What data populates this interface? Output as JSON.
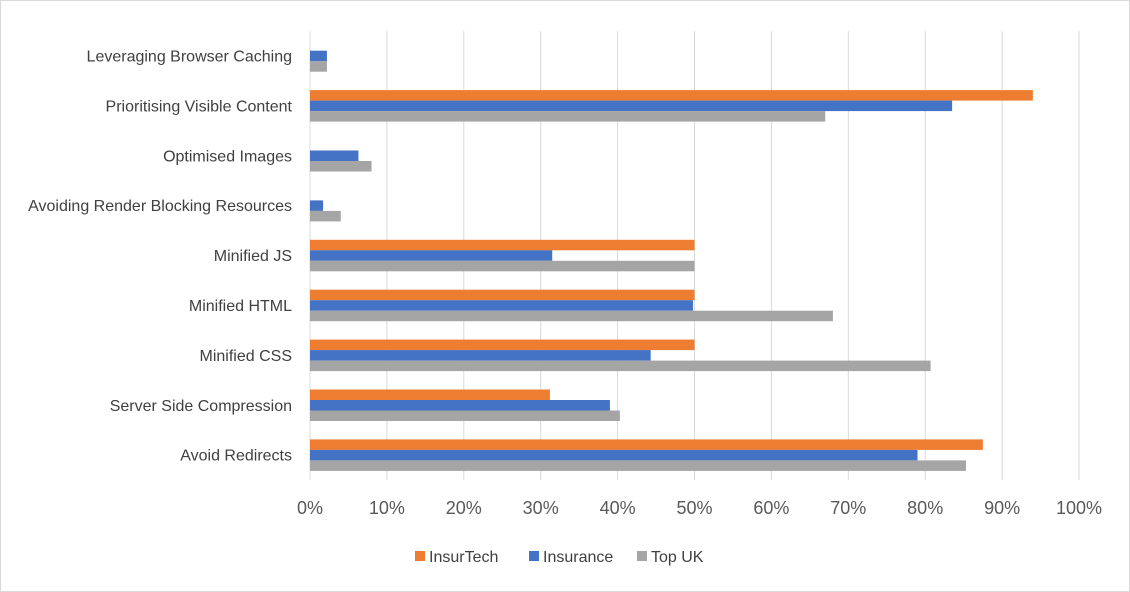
{
  "chart_data": {
    "type": "bar",
    "orientation": "horizontal",
    "categories": [
      "Leveraging Browser Caching",
      "Prioritising Visible Content",
      "Optimised Images",
      "Avoiding Render Blocking Resources",
      "Minified JS",
      "Minified HTML",
      "Minified CSS",
      "Server Side Compression",
      "Avoid Redirects"
    ],
    "series": [
      {
        "name": "InsurTech",
        "color": "#ed7d31",
        "values": [
          0,
          94,
          0,
          0,
          50,
          50,
          50,
          31.2,
          87.5
        ]
      },
      {
        "name": "Insurance",
        "color": "#4472c4",
        "values": [
          2.2,
          83.5,
          6.3,
          1.7,
          31.5,
          49.8,
          44.3,
          39,
          79
        ]
      },
      {
        "name": "Top UK",
        "color": "#a5a5a5",
        "values": [
          2.2,
          67,
          8,
          4,
          50,
          68,
          80.7,
          40.3,
          85.3
        ]
      }
    ],
    "xlim": [
      0,
      100
    ],
    "x_ticks": [
      "0%",
      "10%",
      "20%",
      "30%",
      "40%",
      "50%",
      "60%",
      "70%",
      "80%",
      "90%",
      "100%"
    ],
    "grid": true,
    "legend_position": "bottom",
    "title": "",
    "xlabel": "",
    "ylabel": ""
  }
}
